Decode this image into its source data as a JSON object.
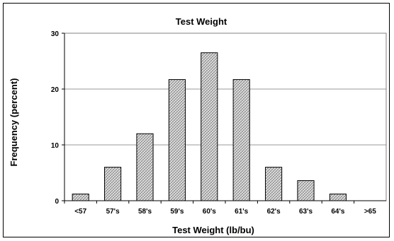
{
  "chart_data": {
    "type": "bar",
    "title": "Test Weight",
    "xlabel": "Test Weight (lb/bu)",
    "ylabel": "Frequency (percent)",
    "categories": [
      "<57",
      "57's",
      "58's",
      "59's",
      "60's",
      "61's",
      "62's",
      "63's",
      "64's",
      ">65"
    ],
    "values": [
      1.2,
      6.0,
      12.0,
      21.7,
      26.5,
      21.7,
      6.0,
      3.6,
      1.2,
      0
    ],
    "ylim": [
      0,
      30
    ],
    "yticks": [
      "0",
      "10",
      "20",
      "30"
    ],
    "grid": true,
    "bar_fill": "#c9c9c9"
  }
}
